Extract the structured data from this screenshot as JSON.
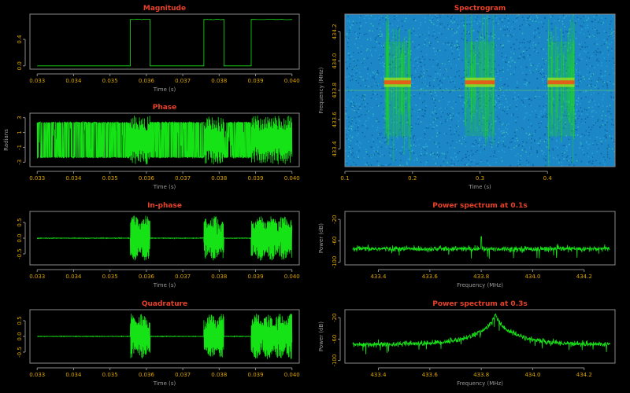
{
  "chart_data": [
    {
      "id": "magnitude",
      "type": "line",
      "title": "Magnitude",
      "xlabel": "Time (s)",
      "ylabel": "",
      "xlim": [
        0.0328,
        0.0402
      ],
      "ylim": [
        -0.05,
        0.78
      ],
      "xticks": [
        "0.033",
        "0.034",
        "0.035",
        "0.036",
        "0.037",
        "0.038",
        "0.039",
        "0.040"
      ],
      "yticks": [
        "0.0",
        "0.4"
      ],
      "bursts": [
        [
          0.03556,
          0.0361
        ],
        [
          0.03758,
          0.03813
        ],
        [
          0.03888,
          0.04
        ]
      ],
      "high_level": 0.7,
      "low_level": 0.0
    },
    {
      "id": "phase",
      "type": "line",
      "title": "Phase",
      "xlabel": "Time (s)",
      "ylabel": "Radians",
      "xlim": [
        0.0328,
        0.0402
      ],
      "ylim": [
        -3.6,
        3.6
      ],
      "xticks": [
        "0.033",
        "0.034",
        "0.035",
        "0.036",
        "0.037",
        "0.038",
        "0.039",
        "0.040"
      ],
      "yticks": [
        "-3",
        "-1",
        "1",
        "3"
      ],
      "range": [
        -3.14,
        3.14
      ]
    },
    {
      "id": "inphase",
      "type": "line",
      "title": "In-phase",
      "xlabel": "Time (s)",
      "ylabel": "",
      "xlim": [
        0.0328,
        0.0402
      ],
      "ylim": [
        -0.85,
        0.85
      ],
      "xticks": [
        "0.033",
        "0.034",
        "0.035",
        "0.036",
        "0.037",
        "0.038",
        "0.039",
        "0.040"
      ],
      "yticks": [
        "-0.5",
        "0.0",
        "0.5"
      ],
      "amplitude": 0.72
    },
    {
      "id": "quadrature",
      "type": "line",
      "title": "Quadrature",
      "xlabel": "Time (s)",
      "ylabel": "",
      "xlim": [
        0.0328,
        0.0402
      ],
      "ylim": [
        -0.85,
        0.85
      ],
      "xticks": [
        "0.033",
        "0.034",
        "0.035",
        "0.036",
        "0.037",
        "0.038",
        "0.039",
        "0.040"
      ],
      "yticks": [
        "-0.5",
        "0.0",
        "0.5"
      ],
      "amplitude": 0.72
    },
    {
      "id": "spectrogram",
      "type": "heatmap",
      "title": "Spectrogram",
      "xlabel": "Time (s)",
      "ylabel": "Frequency (MHz)",
      "xlim": [
        0.1,
        0.5
      ],
      "ylim": [
        433.28,
        434.32
      ],
      "xticks": [
        "0.1",
        "0.2",
        "0.3",
        "0.4"
      ],
      "yticks": [
        "433.4",
        "433.6",
        "433.8",
        "434.0",
        "434.2"
      ],
      "bursts_time": [
        [
          0.158,
          0.198
        ],
        [
          0.278,
          0.322
        ],
        [
          0.4,
          0.44
        ]
      ],
      "carrier_freq": 433.855,
      "line_freq": 433.8,
      "colors": {
        "background": "#1b87c6",
        "signal": "#1cd81c",
        "peak": "#e0601a"
      }
    },
    {
      "id": "spectrum-01",
      "type": "line",
      "title": "Power spectrum at 0.1s",
      "xlabel": "Frequency (MHz)",
      "ylabel": "Power (dB)",
      "xlim": [
        433.27,
        434.32
      ],
      "ylim": [
        -105,
        -5
      ],
      "xticks": [
        "433.4",
        "433.6",
        "433.8",
        "434.0",
        "434.2"
      ],
      "yticks": [
        "-100",
        "-60",
        "-20"
      ],
      "noise_floor": -75,
      "peak_freq": 433.8,
      "peak_db": -52
    },
    {
      "id": "spectrum-03",
      "type": "line",
      "title": "Power spectrum at 0.3s",
      "xlabel": "Frequency (MHz)",
      "ylabel": "Power (dB)",
      "xlim": [
        433.27,
        434.32
      ],
      "ylim": [
        -105,
        -5
      ],
      "xticks": [
        "433.4",
        "433.6",
        "433.8",
        "434.0",
        "434.2"
      ],
      "yticks": [
        "-100",
        "-60",
        "-20"
      ],
      "noise_floor": -70,
      "peak_freq": 433.855,
      "peak_db": -14
    }
  ]
}
